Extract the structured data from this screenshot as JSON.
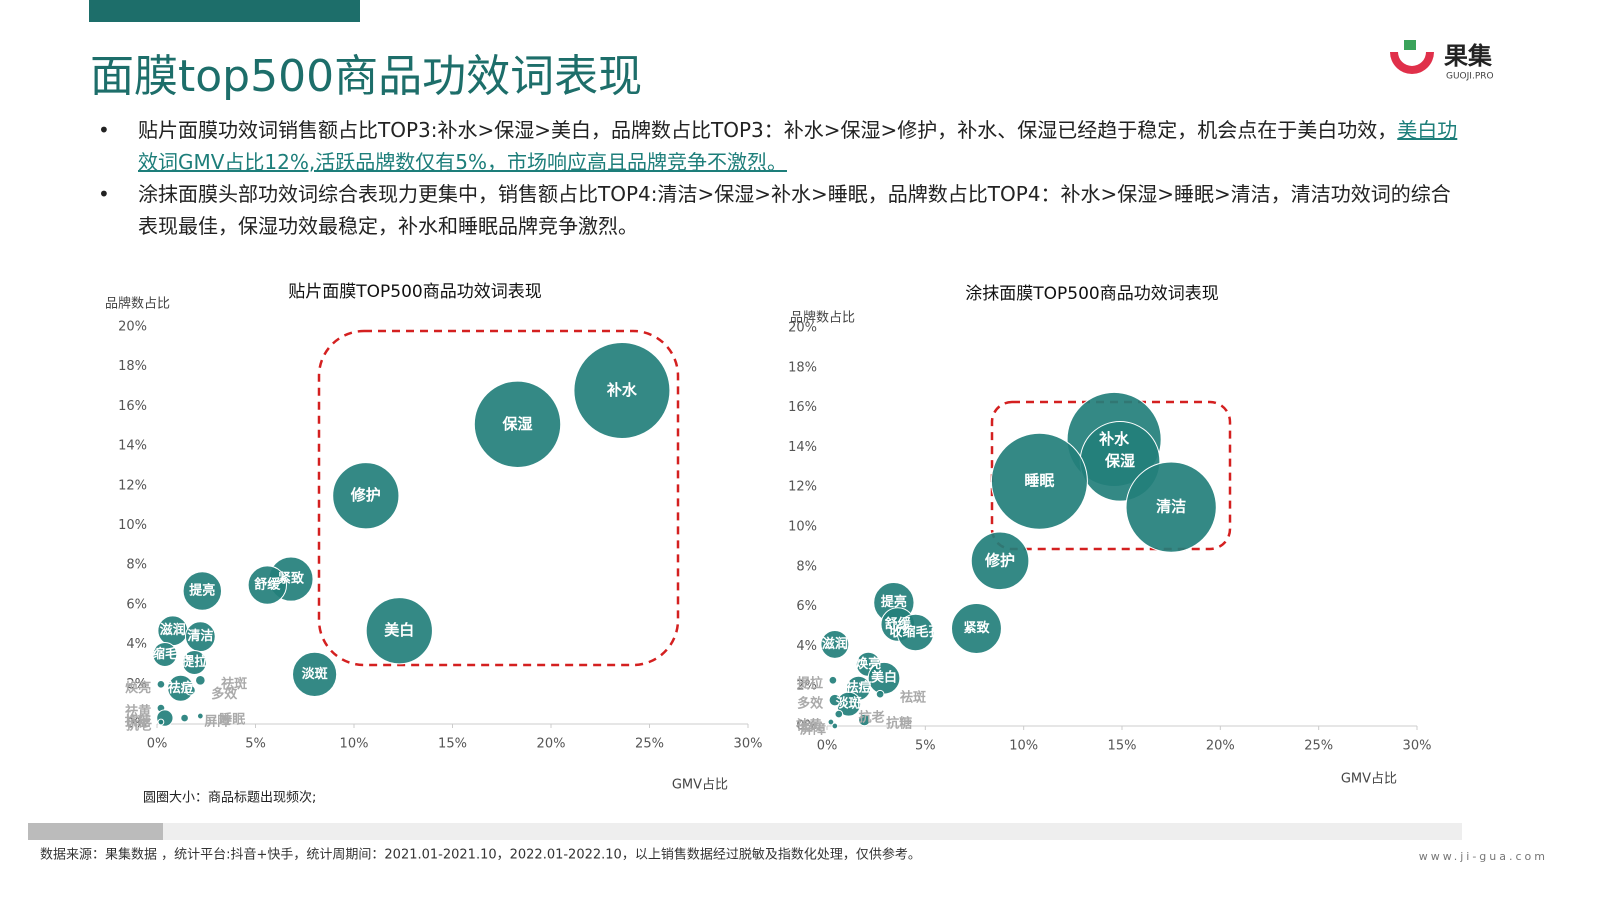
{
  "title": "面膜top500商品功效词表现",
  "logo": {
    "name": "果集",
    "sub": "GUOJI.PRO"
  },
  "bullets": [
    {
      "text": "贴片面膜功效词销售额占比TOP3:补水>保湿>美白，品牌数占比TOP3：补水>保湿>修护，补水、保湿已经趋于稳定，机会点在于美白功效，",
      "highlight": "美白功效词GMV占比12%,活跃品牌数仅有5%，市场响应高且品牌竞争不激烈。"
    },
    {
      "text": "涂抹面膜头部功效词综合表现力更集中，销售额占比TOP4:清洁>保湿>补水>睡眠，品牌数占比TOP4：补水>保湿>睡眠>清洁，清洁功效词的综合表现最佳，保湿功效最稳定，补水和睡眠品牌竞争激烈。"
    }
  ],
  "footer": {
    "source": "数据来源：果集数据 ，统计平台:抖音+快手，统计周期间：2021.01-2021.10，2022.01-2022.10，以上销售数据经过脱敏及指数化处理，仅供参考。",
    "site": "www.ji-gua.com"
  },
  "chart_data": [
    {
      "type": "bubble",
      "title": "贴片面膜TOP500商品功效词表现",
      "y_label": "品牌数占比",
      "x_label": "GMV占比",
      "note": "圆圈大小：商品标题出现频次;",
      "color": "#237f7b",
      "labels": [
        "补水",
        "保湿",
        "修护",
        "美白",
        "淡斑",
        "紧致",
        "舒缓",
        "提亮",
        "滋润",
        "清洁",
        "收缩毛孔",
        "提拉",
        "祛痘",
        "祛斑",
        "多效",
        "焕亮",
        "祛黄",
        "抗糖",
        "屏障",
        "睡眠",
        "抗老"
      ],
      "x": [
        23.6,
        18.3,
        10.6,
        12.3,
        8.0,
        6.8,
        5.6,
        2.3,
        0.8,
        2.2,
        0.4,
        1.9,
        1.2,
        2.2,
        1.7,
        0.2,
        0.2,
        0.4,
        1.4,
        2.2,
        0.2
      ],
      "values": [
        16.8,
        15.1,
        11.5,
        4.7,
        2.5,
        7.3,
        7.0,
        6.7,
        4.7,
        4.4,
        3.5,
        3.1,
        1.8,
        2.2,
        1.7,
        2.0,
        0.8,
        0.3,
        0.3,
        0.4,
        0.1
      ],
      "sizes": [
        100,
        90,
        69,
        69,
        46,
        46,
        40,
        40,
        31,
        31,
        25,
        25,
        27,
        10,
        10,
        8,
        8,
        17,
        8,
        6,
        6
      ],
      "xlim": [
        0,
        30
      ],
      "ylim": [
        0,
        20
      ],
      "xticks": [
        {
          "value": 0,
          "label": "0%"
        },
        {
          "value": 5,
          "label": "5%"
        },
        {
          "value": 10,
          "label": "10%"
        },
        {
          "value": 15,
          "label": "15%"
        },
        {
          "value": 20,
          "label": "20%"
        },
        {
          "value": 25,
          "label": "25%"
        },
        {
          "value": 30,
          "label": "30%"
        }
      ],
      "yticks": [
        {
          "value": 0,
          "label": "0%"
        },
        {
          "value": 2,
          "label": "2%"
        },
        {
          "value": 4,
          "label": "4%"
        },
        {
          "value": 6,
          "label": "6%"
        },
        {
          "value": 8,
          "label": "8%"
        },
        {
          "value": 10,
          "label": "10%"
        },
        {
          "value": 12,
          "label": "12%"
        },
        {
          "value": 14,
          "label": "14%"
        },
        {
          "value": 16,
          "label": "16%"
        },
        {
          "value": 18,
          "label": "18%"
        },
        {
          "value": 20,
          "label": "20%"
        }
      ]
    },
    {
      "type": "bubble",
      "title": "涂抹面膜TOP500商品功效词表现",
      "y_label": "品牌数占比",
      "x_label": "GMV占比",
      "color": "#237f7b",
      "labels": [
        "补水",
        "保湿",
        "睡眠",
        "清洁",
        "修护",
        "紧致",
        "提亮",
        "舒缓",
        "收缩毛孔",
        "滋润",
        "焕亮",
        "美白",
        "祛痘",
        "淡斑",
        "祛斑",
        "提拉",
        "多效",
        "抗老",
        "抗糖",
        "祛黄",
        "屏障"
      ],
      "x": [
        14.6,
        14.9,
        10.8,
        17.5,
        8.8,
        7.6,
        3.4,
        3.6,
        4.5,
        0.4,
        2.1,
        2.9,
        1.6,
        1.1,
        2.7,
        0.3,
        0.4,
        0.6,
        1.9,
        0.2,
        0.4
      ],
      "values": [
        14.4,
        13.3,
        12.3,
        11.0,
        8.3,
        4.9,
        6.2,
        5.1,
        4.7,
        4.1,
        3.1,
        2.4,
        1.9,
        1.1,
        1.6,
        2.3,
        1.3,
        0.6,
        0.3,
        0.2,
        0.0
      ],
      "sizes": [
        98,
        83,
        100,
        94,
        60,
        52,
        42,
        35,
        38,
        29,
        25,
        33,
        25,
        25,
        8,
        8,
        12,
        8,
        12,
        6,
        6
      ],
      "xlim": [
        0,
        30
      ],
      "ylim": [
        0,
        20
      ],
      "xticks": [
        {
          "value": 0,
          "label": "0%"
        },
        {
          "value": 5,
          "label": "5%"
        },
        {
          "value": 10,
          "label": "10%"
        },
        {
          "value": 15,
          "label": "15%"
        },
        {
          "value": 20,
          "label": "20%"
        },
        {
          "value": 25,
          "label": "25%"
        },
        {
          "value": 30,
          "label": "30%"
        }
      ],
      "yticks": [
        {
          "value": 0,
          "label": "0%"
        },
        {
          "value": 2,
          "label": "2%"
        },
        {
          "value": 4,
          "label": "4%"
        },
        {
          "value": 6,
          "label": "6%"
        },
        {
          "value": 8,
          "label": "8%"
        },
        {
          "value": 10,
          "label": "10%"
        },
        {
          "value": 12,
          "label": "12%"
        },
        {
          "value": 14,
          "label": "14%"
        },
        {
          "value": 16,
          "label": "16%"
        },
        {
          "value": 18,
          "label": "18%"
        },
        {
          "value": 20,
          "label": "20%"
        }
      ]
    }
  ]
}
